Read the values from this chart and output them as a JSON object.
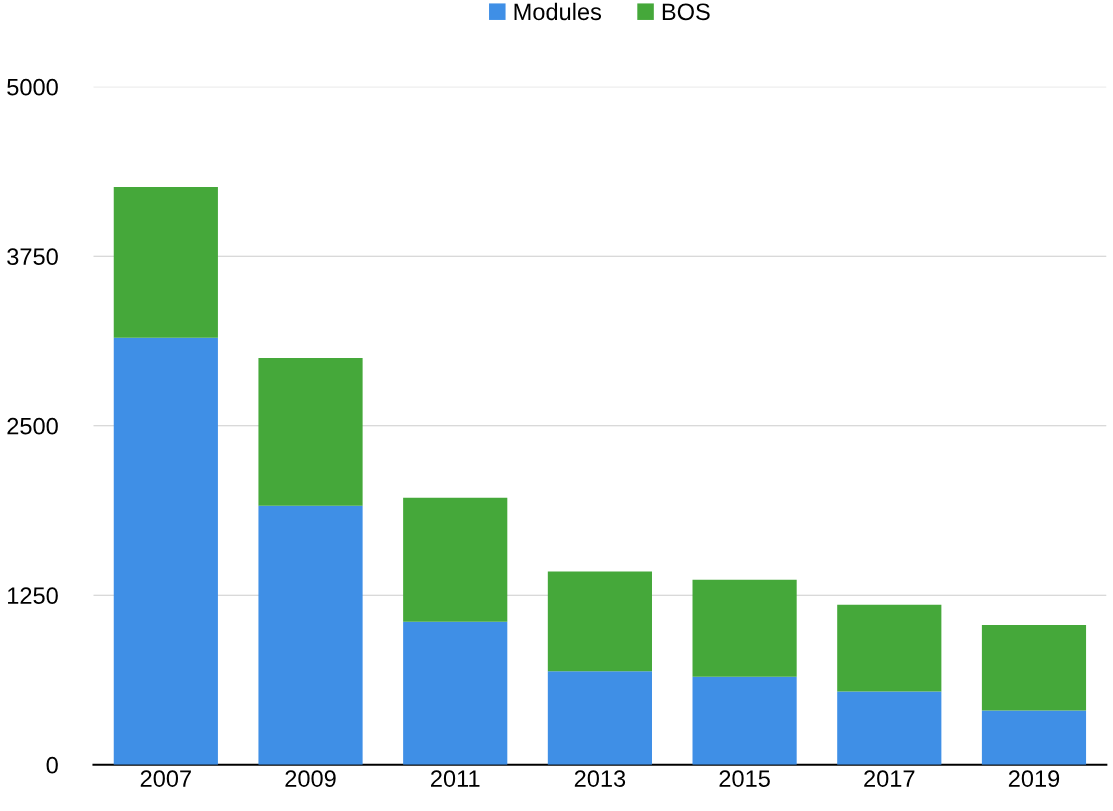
{
  "chart_data": {
    "type": "bar",
    "stacked": true,
    "categories": [
      "2007",
      "2009",
      "2011",
      "2013",
      "2015",
      "2017",
      "2019"
    ],
    "series": [
      {
        "name": "Modules",
        "color": "#3f8fe6",
        "values": [
          3150,
          1910,
          1055,
          690,
          650,
          540,
          400
        ]
      },
      {
        "name": "BOS",
        "color": "#45a83a",
        "values": [
          1110,
          1090,
          915,
          735,
          715,
          640,
          630
        ]
      }
    ],
    "ylim": [
      0,
      5000
    ],
    "yticks": [
      0,
      1250,
      2500,
      3750,
      5000
    ],
    "grid": "y",
    "legend": "top"
  }
}
